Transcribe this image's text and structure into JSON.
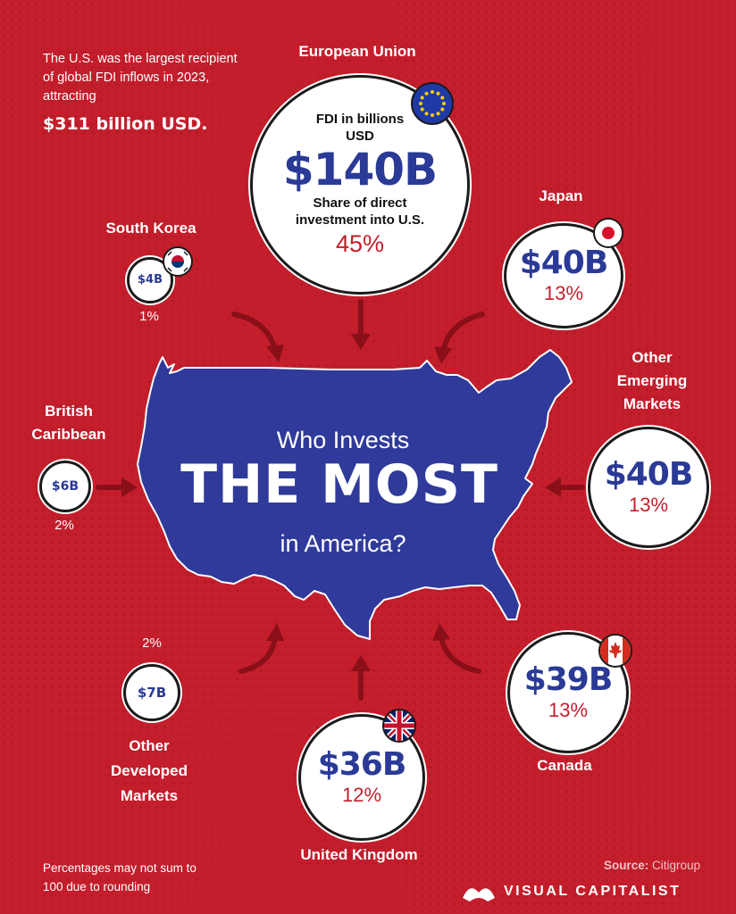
{
  "intro": {
    "text": "The U.S. was the largest recipient of global FDI inflows in 2023, attracting",
    "highlight": "$311 billion USD."
  },
  "title": {
    "line1": "Who Invests",
    "line2": "THE MOST",
    "line3": "in America?"
  },
  "eu_bubble": {
    "label_top": "FDI in billions USD",
    "label_bottom": "Share of direct investment into U.S."
  },
  "footnote": "Percentages may not sum to 100 due to rounding",
  "source": {
    "label": "Source:",
    "value": "Citigroup"
  },
  "brand": "VISUAL CAPITALIST",
  "colors": {
    "background": "#c41e2c",
    "map": "#2f3a9a",
    "value": "#2a3a96",
    "share": "#c41e2c"
  },
  "chart_data": {
    "type": "bubble",
    "title": "Who Invests THE MOST in America?",
    "unit": "billions USD",
    "sources": [
      {
        "name": "European Union",
        "label": "$140B",
        "value": 140,
        "share_label": "45%",
        "share": 45,
        "flag": "eu-flag-icon"
      },
      {
        "name": "Japan",
        "label": "$40B",
        "value": 40,
        "share_label": "13%",
        "share": 13,
        "flag": "japan-flag-icon"
      },
      {
        "name": "Other Emerging Markets",
        "label": "$40B",
        "value": 40,
        "share_label": "13%",
        "share": 13,
        "flag": ""
      },
      {
        "name": "Canada",
        "label": "$39B",
        "value": 39,
        "share_label": "13%",
        "share": 13,
        "flag": "canada-flag-icon"
      },
      {
        "name": "United Kingdom",
        "label": "$36B",
        "value": 36,
        "share_label": "12%",
        "share": 12,
        "flag": "uk-flag-icon"
      },
      {
        "name": "Other Developed Markets",
        "label": "$7B",
        "value": 7,
        "share_label": "2%",
        "share": 2,
        "flag": ""
      },
      {
        "name": "British Caribbean",
        "label": "$6B",
        "value": 6,
        "share_label": "2%",
        "share": 2,
        "flag": ""
      },
      {
        "name": "South Korea",
        "label": "$4B",
        "value": 4,
        "share_label": "1%",
        "share": 1,
        "flag": "south-korea-flag-icon"
      }
    ]
  }
}
